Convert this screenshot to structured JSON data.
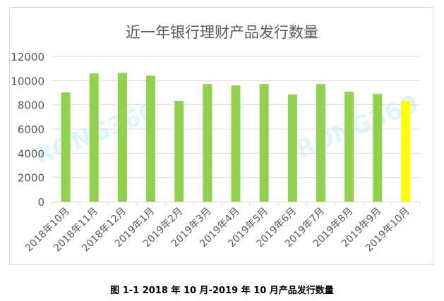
{
  "chart_data": {
    "type": "bar",
    "title": "近一年银行理财产品发行数量",
    "categories": [
      "2018年10月",
      "2018年11月",
      "2018年12月",
      "2019年1月",
      "2019年2月",
      "2019年3月",
      "2019年4月",
      "2019年5月",
      "2019年6月",
      "2019年7月",
      "2019年8月",
      "2019年9月",
      "2019年10月"
    ],
    "values": [
      9020,
      10590,
      10640,
      10410,
      8320,
      9710,
      9600,
      9710,
      8850,
      9710,
      9080,
      8900,
      8320
    ],
    "ylim": [
      0,
      12000
    ],
    "yticks": [
      0,
      2000,
      4000,
      6000,
      8000,
      10000,
      12000
    ],
    "grid": true,
    "colors": {
      "bar": "#92d050",
      "highlight": "#ffff00",
      "grid": "#d9d9d9",
      "text": "#595959"
    },
    "highlight_index": 12
  },
  "caption": "图 1-1 2018 年 10 月-2019 年 10 月产品发行数量",
  "watermark": "RONG360"
}
